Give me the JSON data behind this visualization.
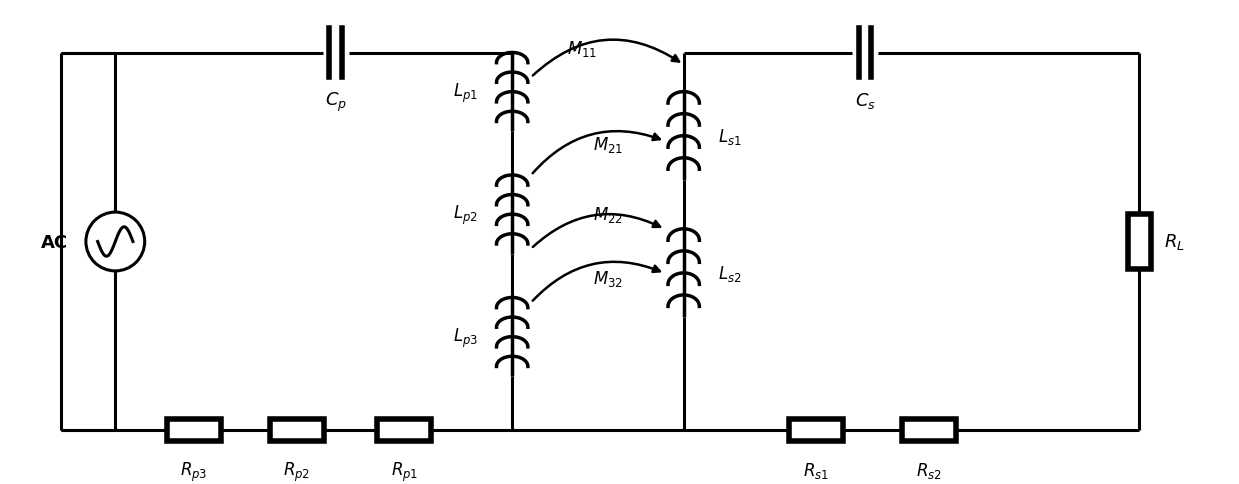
{
  "bg_color": "#ffffff",
  "line_width": 2.2,
  "component_lw": 2.5,
  "fig_width": 12.39,
  "fig_height": 4.85,
  "labels": {
    "AC": "AC",
    "Cp": "$C_p$",
    "Cs": "$C_s$",
    "Lp1": "$L_{p1}$",
    "Lp2": "$L_{p2}$",
    "Lp3": "$L_{p3}$",
    "Ls1": "$L_{s1}$",
    "Ls2": "$L_{s2}$",
    "Rp1": "$R_{p1}$",
    "Rp2": "$R_{p2}$",
    "Rp3": "$R_{p3}$",
    "Rs1": "$R_{s1}$",
    "Rs2": "$R_{s2}$",
    "RL": "$R_L$",
    "M11": "$M_{11}$",
    "M21": "$M_{21}$",
    "M22": "$M_{22}$",
    "M32": "$M_{32}$"
  },
  "font_size": 12
}
